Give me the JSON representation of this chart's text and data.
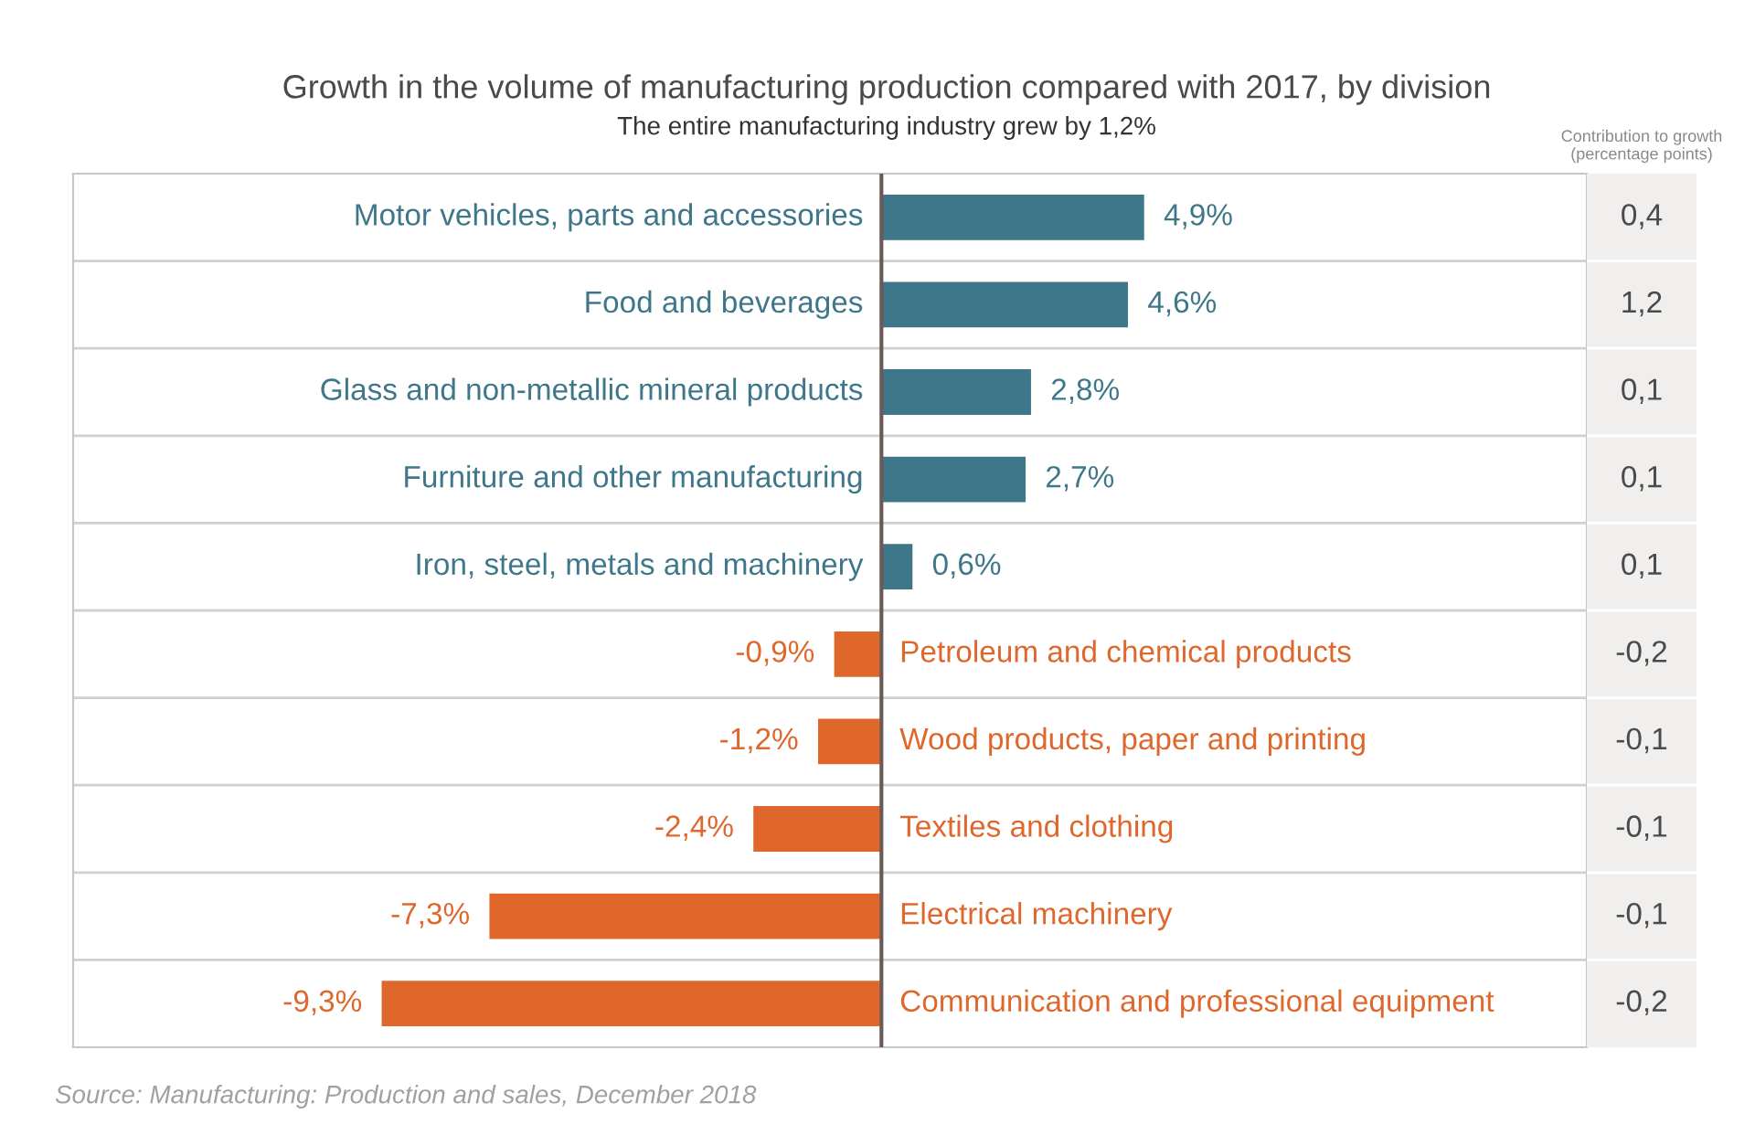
{
  "chart_data": {
    "type": "bar",
    "orientation": "horizontal",
    "title": "Growth in the volume of manufacturing production compared with 2017, by division",
    "subtitle": "The entire manufacturing industry grew by 1,2%",
    "categories": [
      "Motor vehicles, parts and accessories",
      "Food and beverages",
      "Glass and non-metallic mineral products",
      "Furniture and other manufacturing",
      "Iron, steel, metals and machinery",
      "Petroleum and chemical products",
      "Wood products, paper and printing",
      "Textiles and clothing",
      "Electrical machinery",
      "Communication and professional equipment"
    ],
    "values": [
      4.9,
      4.6,
      2.8,
      2.7,
      0.6,
      -0.9,
      -1.2,
      -2.4,
      -7.3,
      -9.3
    ],
    "value_labels": [
      "4,9%",
      "4,6%",
      "2,8%",
      "2,7%",
      "0,6%",
      "-0,9%",
      "-1,2%",
      "-2,4%",
      "-7,3%",
      "-9,3%"
    ],
    "colors": [
      "#3e7789",
      "#3e7789",
      "#3e7789",
      "#3e7789",
      "#3e7789",
      "#e0672c",
      "#e0672c",
      "#e0672c",
      "#e0672c",
      "#e0672c"
    ],
    "tick_labels": false,
    "legend": false,
    "annotations": [
      "Contribution to growth\n(percentage points)",
      "0,4",
      "1,2",
      "0,1",
      "0,1",
      "0,1",
      "-0,2",
      "-0,1",
      "-0,1",
      "-0,1",
      "-0,2",
      "Source: Manufacturing: Production and sales, December 2018"
    ]
  }
}
